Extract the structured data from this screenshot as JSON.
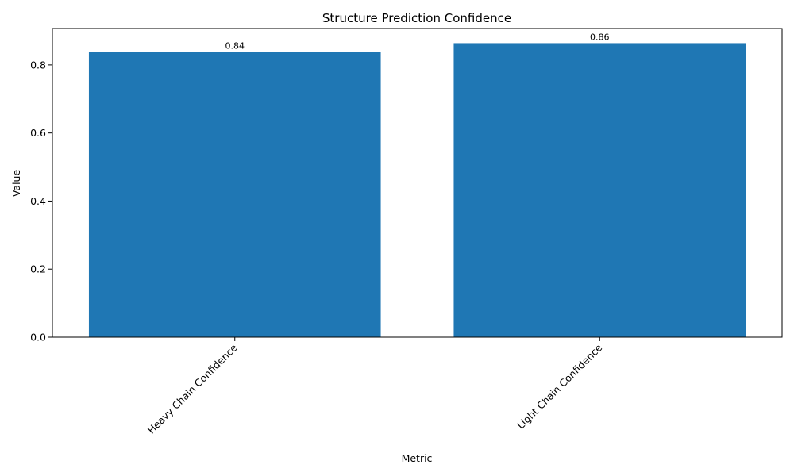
{
  "chart_data": {
    "type": "bar",
    "title": "Structure Prediction Confidence",
    "xlabel": "Metric",
    "ylabel": "Value",
    "categories": [
      "Heavy Chain Confidence",
      "Light Chain Confidence"
    ],
    "values": [
      0.838,
      0.864
    ],
    "data_labels": [
      "0.84",
      "0.86"
    ],
    "ylim": [
      0,
      0.907
    ],
    "yticks": [
      0.0,
      0.2,
      0.4,
      0.6,
      0.8
    ],
    "ytick_labels": [
      "0.0",
      "0.2",
      "0.4",
      "0.6",
      "0.8"
    ],
    "bar_color": "#1f77b4",
    "grid": false,
    "legend": "none"
  }
}
